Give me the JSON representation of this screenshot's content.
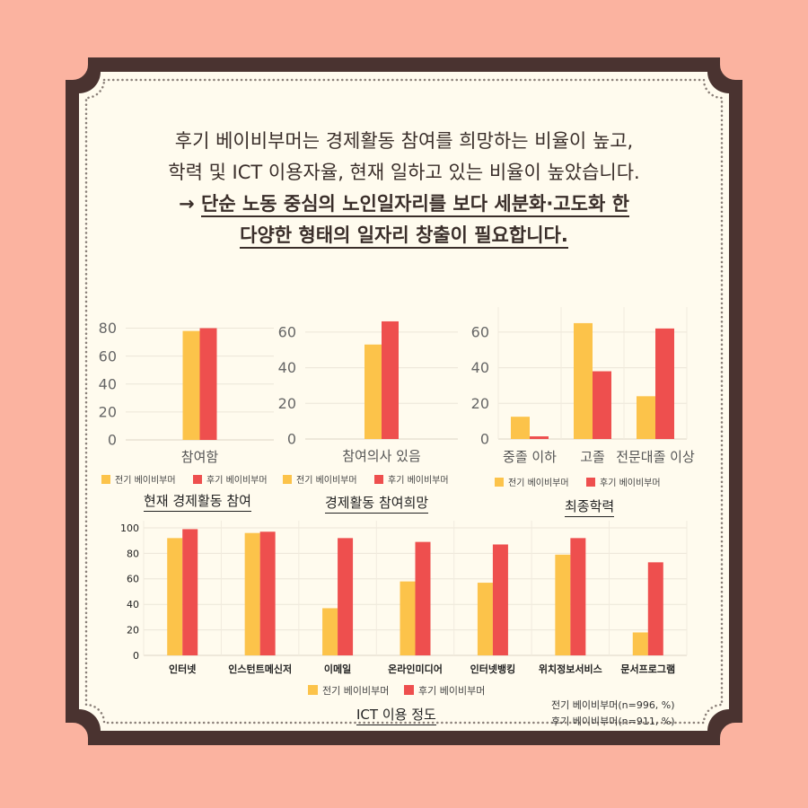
{
  "headline": {
    "line1": "후기 베이비부머는 경제활동 참여를 희망하는 비율이 높고,",
    "line2": "학력 및 ICT 이용자율, 현재 일하고 있는 비율이 높았습니다.",
    "arrow": "→ ",
    "line3": "단순 노동 중심의 노인일자리를 보다 세분화·고도화 한",
    "line4": "다양한 형태의 일자리 창출이 필요합니다."
  },
  "colors": {
    "early": "#fcc34a",
    "late": "#ee4f4e",
    "frame": "#4a3330",
    "card": "#fffbee",
    "bg": "#fbb3a0"
  },
  "legend_labels": [
    "전기 베이비부머",
    "후기 베이비부머"
  ],
  "notes": [
    "전기 베이비부머(n=996, %)",
    "후기 베이비부머(n=911, %)"
  ],
  "chart_data": [
    {
      "type": "bar",
      "title": "현재 경제활동 참여",
      "categories": [
        "참여함"
      ],
      "series": [
        {
          "name": "전기 베이비부머",
          "values": [
            78
          ]
        },
        {
          "name": "후기 베이비부머",
          "values": [
            80
          ]
        }
      ],
      "yticks": [
        0,
        20,
        40,
        60,
        80
      ],
      "ylim": [
        0,
        90
      ],
      "legend": "bottom"
    },
    {
      "type": "bar",
      "title": "경제활동 참여희망",
      "categories": [
        "참여의사 있음"
      ],
      "series": [
        {
          "name": "전기 베이비부머",
          "values": [
            53
          ]
        },
        {
          "name": "후기 베이비부머",
          "values": [
            66
          ]
        }
      ],
      "yticks": [
        0,
        20,
        40,
        60
      ],
      "ylim": [
        0,
        70
      ],
      "legend": "bottom"
    },
    {
      "type": "bar",
      "title": "최종학력",
      "categories": [
        "중졸 이하",
        "고졸",
        "전문대졸 이상"
      ],
      "series": [
        {
          "name": "전기 베이비부머",
          "values": [
            12.5,
            65,
            24
          ]
        },
        {
          "name": "후기 베이비부머",
          "values": [
            1.5,
            38,
            62
          ]
        }
      ],
      "yticks": [
        0,
        20,
        40,
        60
      ],
      "ylim": [
        0,
        70
      ],
      "legend": "bottom"
    },
    {
      "type": "bar",
      "title": "ICT 이용 정도",
      "categories": [
        "인터넷",
        "인스턴트메신저",
        "이메일",
        "온라인미디어",
        "인터넷뱅킹",
        "위치정보서비스",
        "문서프로그램"
      ],
      "series": [
        {
          "name": "전기 베이비부머",
          "values": [
            92,
            96,
            37,
            58,
            57,
            79,
            18
          ]
        },
        {
          "name": "후기 베이비부머",
          "values": [
            99,
            97,
            92,
            89,
            87,
            92,
            73
          ]
        }
      ],
      "yticks": [
        0,
        20,
        40,
        60,
        80,
        100
      ],
      "ylim": [
        0,
        100
      ],
      "legend": "bottom"
    }
  ]
}
